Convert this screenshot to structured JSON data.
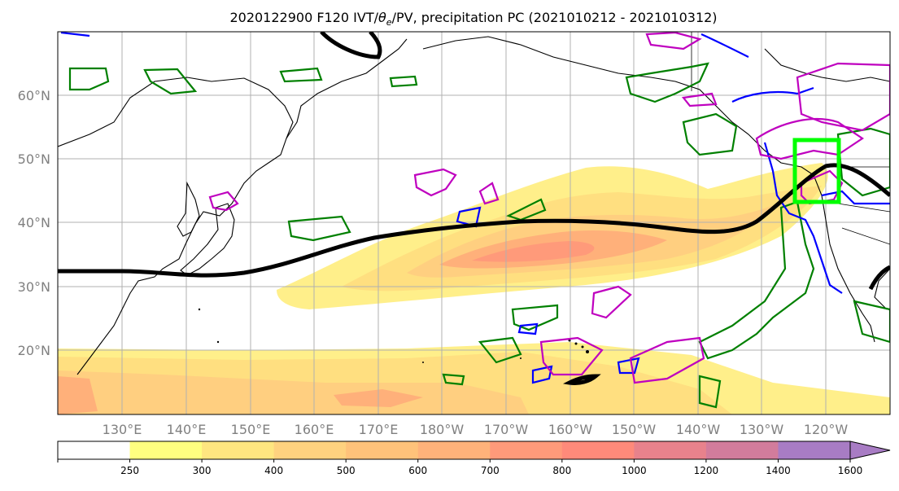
{
  "title": {
    "prefix": "2020122900 F120 IVT/",
    "theta": "θ",
    "theta_sub": "e",
    "suffix": "/PV, precipitation PC (2021010212 - 2021010312)"
  },
  "map": {
    "lat_labels": [
      "60°N",
      "50°N",
      "40°N",
      "30°N",
      "20°N"
    ],
    "lon_labels": [
      "130°E",
      "140°E",
      "150°E",
      "160°E",
      "170°E",
      "180°W",
      "170°W",
      "160°W",
      "150°W",
      "140°W",
      "130°W",
      "120°W"
    ],
    "highlight_box_color": "#00ff00",
    "jet_line_color": "#000000",
    "contour_colors": {
      "green": "#008000",
      "blue": "#0000ff",
      "magenta": "#bf00bf"
    }
  },
  "colorbar": {
    "tick_labels": [
      "250",
      "300",
      "400",
      "500",
      "600",
      "700",
      "800",
      "1000",
      "1200",
      "1400",
      "1600"
    ],
    "colors": [
      "#ffffff",
      "#ffff80",
      "#ffe680",
      "#ffd27f",
      "#ffc27a",
      "#ffb27a",
      "#ff9a7a",
      "#ff8a7a",
      "#e8828c",
      "#d27c9c",
      "#a87cc4"
    ]
  }
}
